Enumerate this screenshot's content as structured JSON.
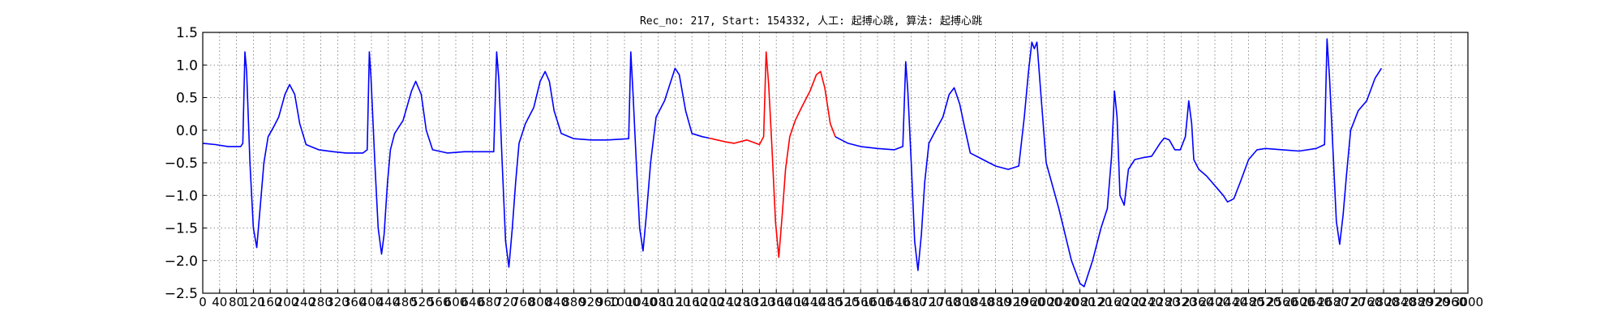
{
  "chart_data": {
    "type": "line",
    "title": "Rec_no: 217, Start: 154332, 人工: 起搏心跳, 算法: 起搏心跳",
    "xlabel": "",
    "ylabel": "",
    "xlim": [
      0,
      3000
    ],
    "ylim": [
      -2.5,
      1.5
    ],
    "grid": true,
    "yticks": [
      1.5,
      1.0,
      0.5,
      0.0,
      -0.5,
      -1.0,
      -1.5,
      -2.0,
      -2.5
    ],
    "ytick_labels": [
      "1.5",
      "1.0",
      "0.5",
      "0.0",
      "−0.5",
      "−1.0",
      "−1.5",
      "−2.0",
      "−2.5"
    ],
    "xticks": [
      0,
      40,
      80,
      120,
      160,
      200,
      240,
      280,
      320,
      360,
      400,
      440,
      480,
      520,
      560,
      600,
      640,
      680,
      720,
      760,
      800,
      840,
      880,
      920,
      960,
      1000,
      1040,
      1080,
      1120,
      1160,
      1200,
      1240,
      1280,
      1320,
      1360,
      1400,
      1440,
      1480,
      1520,
      1560,
      1600,
      1640,
      1680,
      1720,
      1760,
      1800,
      1840,
      1880,
      1920,
      1960,
      2000,
      2040,
      2080,
      2120,
      2160,
      2200,
      2240,
      2280,
      2320,
      2360,
      2400,
      2440,
      2480,
      2520,
      2560,
      2600,
      2640,
      2680,
      2720,
      2760,
      2800,
      2840,
      2880,
      2920,
      2960,
      3000
    ],
    "series": [
      {
        "color": "#0000ff",
        "points": [
          [
            0,
            -0.2
          ],
          [
            30,
            -0.22
          ],
          [
            60,
            -0.25
          ],
          [
            90,
            -0.25
          ],
          [
            95,
            -0.2
          ],
          [
            100,
            1.2
          ],
          [
            104,
            0.9
          ],
          [
            112,
            -0.5
          ],
          [
            120,
            -1.5
          ],
          [
            128,
            -1.8
          ],
          [
            136,
            -1.2
          ],
          [
            145,
            -0.5
          ],
          [
            155,
            -0.1
          ],
          [
            168,
            0.05
          ],
          [
            180,
            0.2
          ],
          [
            195,
            0.55
          ],
          [
            206,
            0.7
          ],
          [
            218,
            0.55
          ],
          [
            230,
            0.1
          ],
          [
            245,
            -0.22
          ],
          [
            275,
            -0.3
          ],
          [
            310,
            -0.33
          ],
          [
            340,
            -0.35
          ],
          [
            380,
            -0.35
          ],
          [
            390,
            -0.3
          ],
          [
            395,
            1.2
          ],
          [
            399,
            0.8
          ],
          [
            408,
            -0.5
          ],
          [
            416,
            -1.5
          ],
          [
            424,
            -1.9
          ],
          [
            430,
            -1.6
          ],
          [
            438,
            -0.8
          ],
          [
            445,
            -0.3
          ],
          [
            455,
            -0.05
          ],
          [
            475,
            0.15
          ],
          [
            495,
            0.6
          ],
          [
            505,
            0.75
          ],
          [
            518,
            0.55
          ],
          [
            530,
            0.0
          ],
          [
            545,
            -0.3
          ],
          [
            580,
            -0.35
          ],
          [
            620,
            -0.33
          ],
          [
            660,
            -0.33
          ],
          [
            690,
            -0.33
          ],
          [
            697,
            1.2
          ],
          [
            702,
            0.8
          ],
          [
            710,
            -0.5
          ],
          [
            718,
            -1.7
          ],
          [
            726,
            -2.1
          ],
          [
            734,
            -1.5
          ],
          [
            742,
            -0.8
          ],
          [
            750,
            -0.2
          ],
          [
            765,
            0.1
          ],
          [
            785,
            0.35
          ],
          [
            800,
            0.75
          ],
          [
            812,
            0.9
          ],
          [
            822,
            0.75
          ],
          [
            833,
            0.3
          ],
          [
            850,
            -0.05
          ],
          [
            880,
            -0.13
          ],
          [
            920,
            -0.15
          ],
          [
            960,
            -0.15
          ],
          [
            1010,
            -0.13
          ],
          [
            1015,
            1.2
          ],
          [
            1020,
            0.6
          ],
          [
            1028,
            -0.5
          ],
          [
            1036,
            -1.5
          ],
          [
            1044,
            -1.85
          ],
          [
            1052,
            -1.3
          ],
          [
            1062,
            -0.5
          ],
          [
            1075,
            0.2
          ],
          [
            1095,
            0.45
          ],
          [
            1110,
            0.75
          ],
          [
            1120,
            0.95
          ],
          [
            1130,
            0.85
          ],
          [
            1145,
            0.3
          ],
          [
            1160,
            -0.05
          ],
          [
            1185,
            -0.1
          ],
          [
            1200,
            -0.12
          ]
        ]
      },
      {
        "color": "#ff0000",
        "points": [
          [
            1200,
            -0.12
          ],
          [
            1220,
            -0.15
          ],
          [
            1240,
            -0.18
          ],
          [
            1260,
            -0.2
          ],
          [
            1290,
            -0.15
          ],
          [
            1320,
            -0.22
          ],
          [
            1330,
            -0.1
          ],
          [
            1336,
            1.2
          ],
          [
            1342,
            0.7
          ],
          [
            1350,
            -0.3
          ],
          [
            1358,
            -1.4
          ],
          [
            1366,
            -1.95
          ],
          [
            1374,
            -1.3
          ],
          [
            1382,
            -0.6
          ],
          [
            1392,
            -0.1
          ],
          [
            1405,
            0.15
          ],
          [
            1420,
            0.35
          ],
          [
            1440,
            0.6
          ],
          [
            1455,
            0.85
          ],
          [
            1465,
            0.9
          ],
          [
            1475,
            0.65
          ],
          [
            1488,
            0.1
          ],
          [
            1500,
            -0.1
          ]
        ]
      },
      {
        "color": "#0000ff",
        "points": [
          [
            1500,
            -0.1
          ],
          [
            1530,
            -0.2
          ],
          [
            1560,
            -0.25
          ],
          [
            1600,
            -0.28
          ],
          [
            1640,
            -0.3
          ],
          [
            1660,
            -0.25
          ],
          [
            1667,
            1.05
          ],
          [
            1672,
            0.6
          ],
          [
            1680,
            -0.5
          ],
          [
            1688,
            -1.7
          ],
          [
            1696,
            -2.15
          ],
          [
            1704,
            -1.6
          ],
          [
            1712,
            -0.8
          ],
          [
            1722,
            -0.2
          ],
          [
            1738,
            0.0
          ],
          [
            1755,
            0.2
          ],
          [
            1770,
            0.55
          ],
          [
            1782,
            0.65
          ],
          [
            1795,
            0.4
          ],
          [
            1808,
            0.0
          ],
          [
            1820,
            -0.35
          ],
          [
            1850,
            -0.45
          ],
          [
            1880,
            -0.55
          ],
          [
            1910,
            -0.6
          ],
          [
            1935,
            -0.55
          ],
          [
            1948,
            0.2
          ],
          [
            1958,
            0.9
          ],
          [
            1966,
            1.35
          ],
          [
            1972,
            1.25
          ],
          [
            1978,
            1.35
          ],
          [
            1988,
            0.5
          ],
          [
            2000,
            -0.5
          ],
          [
            2030,
            -1.2
          ],
          [
            2060,
            -2.0
          ],
          [
            2080,
            -2.35
          ],
          [
            2090,
            -2.4
          ],
          [
            2110,
            -2.0
          ],
          [
            2130,
            -1.5
          ],
          [
            2145,
            -1.2
          ],
          [
            2155,
            -0.4
          ],
          [
            2162,
            0.6
          ],
          [
            2168,
            0.2
          ],
          [
            2175,
            -1.0
          ],
          [
            2185,
            -1.15
          ],
          [
            2195,
            -0.6
          ],
          [
            2210,
            -0.45
          ],
          [
            2230,
            -0.42
          ],
          [
            2250,
            -0.4
          ],
          [
            2270,
            -0.2
          ],
          [
            2280,
            -0.12
          ],
          [
            2292,
            -0.15
          ],
          [
            2305,
            -0.3
          ],
          [
            2318,
            -0.3
          ],
          [
            2330,
            -0.1
          ],
          [
            2338,
            0.45
          ],
          [
            2345,
            0.1
          ],
          [
            2350,
            -0.45
          ],
          [
            2362,
            -0.6
          ],
          [
            2380,
            -0.7
          ],
          [
            2400,
            -0.85
          ],
          [
            2420,
            -1.0
          ],
          [
            2430,
            -1.1
          ],
          [
            2445,
            -1.05
          ],
          [
            2460,
            -0.8
          ],
          [
            2480,
            -0.45
          ],
          [
            2500,
            -0.3
          ],
          [
            2520,
            -0.28
          ],
          [
            2560,
            -0.3
          ],
          [
            2600,
            -0.32
          ],
          [
            2640,
            -0.28
          ],
          [
            2660,
            -0.22
          ],
          [
            2666,
            1.4
          ],
          [
            2672,
            0.8
          ],
          [
            2680,
            -0.3
          ],
          [
            2688,
            -1.4
          ],
          [
            2696,
            -1.75
          ],
          [
            2704,
            -1.3
          ],
          [
            2712,
            -0.7
          ],
          [
            2722,
            0.0
          ],
          [
            2740,
            0.3
          ],
          [
            2760,
            0.45
          ],
          [
            2780,
            0.8
          ],
          [
            2795,
            0.95
          ]
        ]
      }
    ]
  }
}
